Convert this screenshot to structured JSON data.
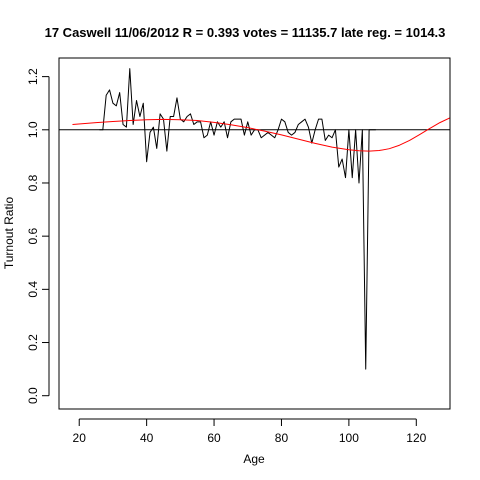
{
  "chart_data": {
    "type": "line",
    "title": "17 Caswell 11/06/2012 R = 0.393 votes = 11135.7 late reg. = 1014.3",
    "xlabel": "Age",
    "ylabel": "Turnout Ratio",
    "xlim": [
      14,
      130
    ],
    "ylim": [
      -0.05,
      1.27
    ],
    "x_ticks": [
      20,
      40,
      60,
      80,
      100,
      120
    ],
    "x_tick_labels": [
      "20",
      "40",
      "60",
      "80",
      "100",
      "120"
    ],
    "y_ticks": [
      0.0,
      0.2,
      0.4,
      0.6,
      0.8,
      1.0,
      1.2
    ],
    "y_tick_labels": [
      "0.0",
      "0.2",
      "0.4",
      "0.6",
      "0.8",
      "1.0",
      "1.2"
    ],
    "reference_line": {
      "y": 1.0,
      "color": "#000000"
    },
    "grid": false,
    "series": [
      {
        "style": "observed",
        "color": "#000000",
        "x": [
          26,
          27,
          28,
          29,
          30,
          31,
          32,
          33,
          34,
          35,
          36,
          37,
          38,
          39,
          40,
          41,
          42,
          43,
          44,
          45,
          46,
          47,
          48,
          49,
          50,
          51,
          52,
          53,
          54,
          55,
          56,
          57,
          58,
          59,
          60,
          61,
          62,
          63,
          64,
          65,
          66,
          67,
          68,
          69,
          70,
          71,
          72,
          73,
          74,
          75,
          76,
          77,
          78,
          79,
          80,
          81,
          82,
          83,
          84,
          85,
          86,
          87,
          88,
          89,
          90,
          91,
          92,
          93,
          94,
          95,
          96,
          97,
          98,
          99,
          100,
          101,
          102,
          103,
          104,
          105,
          106,
          107,
          108
        ],
        "y": [
          1.0,
          1.0,
          1.13,
          1.15,
          1.1,
          1.09,
          1.14,
          1.02,
          1.01,
          1.23,
          1.02,
          1.11,
          1.05,
          1.1,
          0.88,
          0.99,
          1.01,
          0.93,
          1.06,
          1.04,
          0.92,
          1.05,
          1.05,
          1.12,
          1.04,
          1.03,
          1.05,
          1.06,
          1.02,
          1.03,
          1.03,
          0.97,
          0.98,
          1.03,
          0.98,
          1.03,
          1.01,
          1.03,
          0.97,
          1.03,
          1.04,
          1.04,
          1.04,
          0.98,
          1.03,
          0.98,
          1.0,
          1.0,
          0.97,
          0.98,
          0.99,
          0.98,
          0.97,
          1.0,
          1.04,
          1.03,
          0.99,
          0.98,
          0.99,
          1.02,
          1.03,
          1.04,
          1.01,
          0.95,
          1.0,
          1.04,
          1.04,
          0.96,
          0.98,
          0.97,
          1.0,
          0.86,
          0.89,
          0.82,
          1.0,
          0.82,
          1.0,
          0.8,
          1.0,
          0.1,
          1.0,
          1.0,
          1.0
        ]
      },
      {
        "style": "fitted",
        "color": "#ff0000",
        "x": [
          18,
          25,
          30,
          35,
          40,
          45,
          50,
          55,
          60,
          65,
          70,
          75,
          80,
          85,
          90,
          95,
          100,
          103,
          106,
          109,
          112,
          115,
          118,
          121,
          124,
          127,
          130
        ],
        "y": [
          1.02,
          1.027,
          1.031,
          1.035,
          1.038,
          1.039,
          1.038,
          1.035,
          1.028,
          1.019,
          1.008,
          0.995,
          0.981,
          0.965,
          0.949,
          0.935,
          0.925,
          0.921,
          0.92,
          0.922,
          0.929,
          0.942,
          0.96,
          0.982,
          1.005,
          1.027,
          1.045
        ]
      }
    ]
  }
}
